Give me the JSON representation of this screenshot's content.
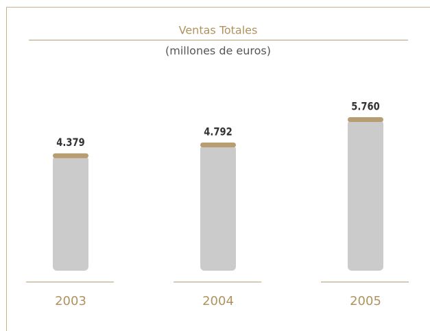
{
  "chart_data": {
    "type": "bar",
    "title": "Ventas Totales",
    "subtitle": "(millones de euros)",
    "categories": [
      "2003",
      "2004",
      "2005"
    ],
    "values": [
      4379,
      4792,
      5760
    ],
    "value_labels": [
      "4.379",
      "4.792",
      "5.760"
    ],
    "color": "#cbcbcb",
    "cap_color": "#b79e72"
  }
}
